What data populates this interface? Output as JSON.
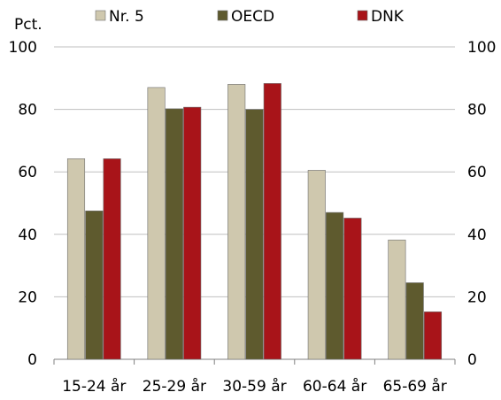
{
  "chart_data": {
    "type": "bar",
    "ylabel": "Pct.",
    "categories": [
      "15-24 år",
      "25-29 år",
      "30-59 år",
      "60-64 år",
      "65-69 år"
    ],
    "series": [
      {
        "name": "Nr. 5",
        "color": "#cfc8ae",
        "values": [
          64.2,
          87.0,
          88.0,
          60.5,
          38.2
        ]
      },
      {
        "name": "OECD",
        "color": "#5e5a2e",
        "values": [
          47.5,
          80.2,
          80.0,
          47.0,
          24.5
        ]
      },
      {
        "name": "DNK",
        "color": "#a81419",
        "values": [
          64.2,
          80.7,
          88.3,
          45.2,
          15.2
        ]
      }
    ],
    "ylim": [
      0,
      100
    ],
    "yticks": [
      0,
      20,
      40,
      60,
      80,
      100
    ],
    "right_axis_ticks": [
      0,
      20,
      40,
      60,
      80,
      100
    ],
    "grid": true,
    "legend": "top"
  }
}
